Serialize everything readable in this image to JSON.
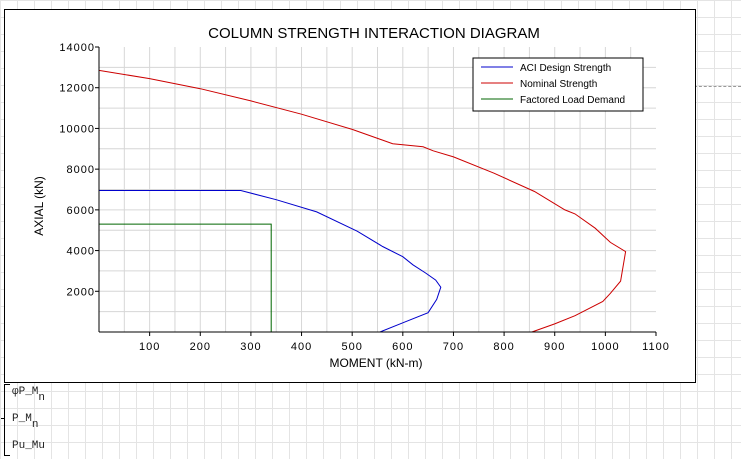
{
  "chart_data": {
    "type": "line",
    "title": "COLUMN STRENGTH INTERACTION DIAGRAM",
    "xlabel": "MOMENT (kN-m)",
    "ylabel": "AXIAL (kN)",
    "xlim": [
      0,
      1100
    ],
    "ylim": [
      0,
      14000
    ],
    "xticks": [
      100,
      200,
      300,
      400,
      500,
      600,
      700,
      800,
      900,
      1000,
      1100
    ],
    "yticks": [
      2000,
      4000,
      6000,
      8000,
      10000,
      12000,
      14000
    ],
    "grid": true,
    "legend_position": "top-right",
    "series": [
      {
        "name": "ACI Design Strength",
        "color": "#0000cc",
        "x": [
          0,
          280,
          350,
          430,
          510,
          560,
          600,
          620,
          645,
          665,
          675,
          667,
          650,
          600,
          555
        ],
        "y": [
          6950,
          6950,
          6500,
          5900,
          4950,
          4200,
          3700,
          3300,
          2900,
          2550,
          2200,
          1600,
          950,
          450,
          0
        ],
        "line_style": "solid"
      },
      {
        "name": "Nominal Strength",
        "color": "#cc0000",
        "x": [
          0,
          100,
          200,
          300,
          400,
          500,
          580,
          640,
          660,
          700,
          780,
          860,
          920,
          940,
          980,
          1010,
          1040,
          1030,
          1010,
          995,
          940,
          900,
          855
        ],
        "y": [
          12850,
          12450,
          11950,
          11350,
          10700,
          9950,
          9250,
          9100,
          8900,
          8600,
          7800,
          6900,
          6000,
          5800,
          5100,
          4400,
          3950,
          2500,
          1900,
          1500,
          800,
          400,
          0
        ],
        "line_style": "solid"
      },
      {
        "name": "Factored Load Demand",
        "color": "#006600",
        "x": [
          0,
          340,
          340
        ],
        "y": [
          5300,
          5300,
          0
        ],
        "line_style": "solid"
      }
    ]
  },
  "variable_list": {
    "item1_main": "φP_M",
    "item1_sub": "n",
    "item2_main": "P_M",
    "item2_sub": "n",
    "item3": "Pu_Mu"
  }
}
